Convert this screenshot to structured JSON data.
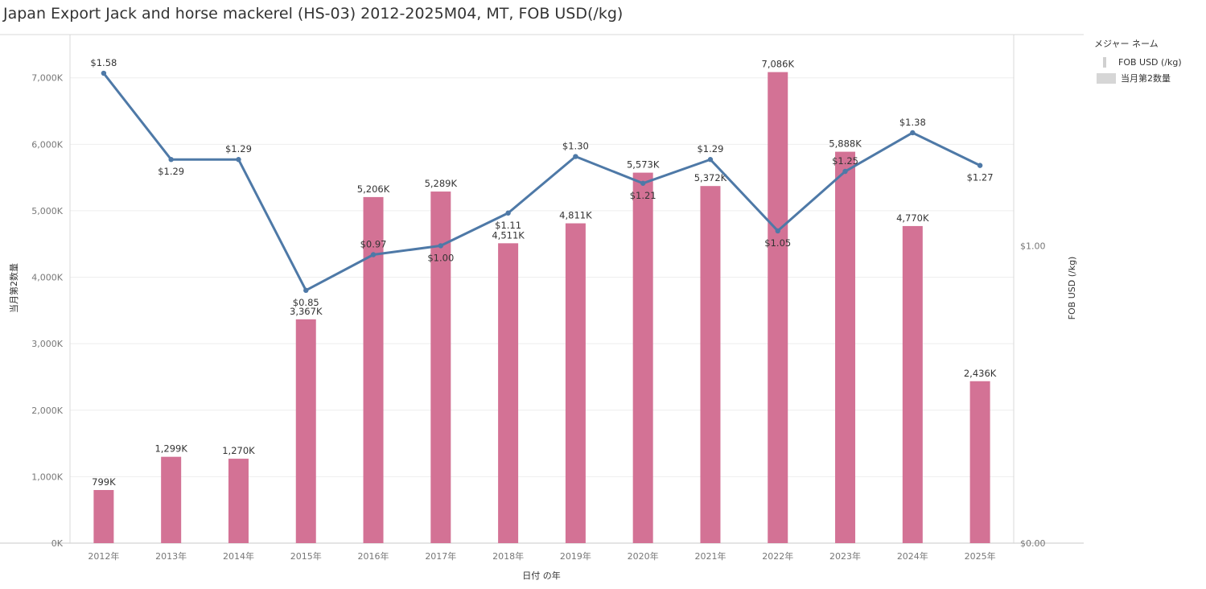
{
  "title": "Japan Export Jack and horse mackerel (HS-03) 2012-2025M04, MT, FOB USD(/kg)",
  "legend": {
    "title": "メジャー ネーム",
    "items": [
      {
        "label": "FOB USD (/kg)",
        "kind": "line"
      },
      {
        "label": "当月第2数量",
        "kind": "bar"
      }
    ]
  },
  "chart_data": {
    "type": "bar",
    "title": "Japan Export Jack and horse mackerel (HS-03) 2012-2025M04, MT, FOB USD(/kg)",
    "xlabel": "日付 の年",
    "ylabel": "当月第2数量",
    "y2label": "FOB USD (/kg)",
    "categories": [
      "2012年",
      "2013年",
      "2014年",
      "2015年",
      "2016年",
      "2017年",
      "2018年",
      "2019年",
      "2020年",
      "2021年",
      "2022年",
      "2023年",
      "2024年",
      "2025年"
    ],
    "ylim": [
      0,
      7650
    ],
    "y_ticks": [
      {
        "value": 0,
        "label": "0K"
      },
      {
        "value": 1000,
        "label": "1,000K"
      },
      {
        "value": 2000,
        "label": "2,000K"
      },
      {
        "value": 3000,
        "label": "3,000K"
      },
      {
        "value": 4000,
        "label": "4,000K"
      },
      {
        "value": 5000,
        "label": "5,000K"
      },
      {
        "value": 6000,
        "label": "6,000K"
      },
      {
        "value": 7000,
        "label": "7,000K"
      }
    ],
    "y2lim": [
      0,
      1.71
    ],
    "y2_ticks": [
      {
        "value": 0,
        "label": "$0.00"
      },
      {
        "value": 1.0,
        "label": "$1.00"
      }
    ],
    "grid": true,
    "legend_position": "right",
    "series": [
      {
        "name": "当月第2数量",
        "type": "bar",
        "axis": "left",
        "color": "#d37295",
        "values": [
          799,
          1299,
          1270,
          3367,
          5206,
          5289,
          4511,
          4811,
          5573,
          5372,
          7086,
          5888,
          4770,
          2436
        ],
        "labels": [
          "799K",
          "1,299K",
          "1,270K",
          "3,367K",
          "5,206K",
          "5,289K",
          "4,511K",
          "4,811K",
          "5,573K",
          "5,372K",
          "7,086K",
          "5,888K",
          "4,770K",
          "2,436K"
        ]
      },
      {
        "name": "FOB USD (/kg)",
        "type": "line",
        "axis": "right",
        "color": "#4e79a7",
        "values": [
          1.58,
          1.29,
          1.29,
          0.85,
          0.97,
          1.0,
          1.11,
          1.3,
          1.21,
          1.29,
          1.05,
          1.25,
          1.38,
          1.27
        ],
        "labels": [
          "$1.58",
          "$1.29",
          "$1.29",
          "$0.85",
          "$0.97",
          "$1.00",
          "$1.11",
          "$1.30",
          "$1.21",
          "$1.29",
          "$1.05",
          "$1.25",
          "$1.38",
          "$1.27"
        ],
        "label_position": [
          "above",
          "below",
          "above",
          "below",
          "above",
          "below",
          "below",
          "above",
          "below",
          "above",
          "below",
          "above",
          "above",
          "below"
        ]
      }
    ]
  }
}
